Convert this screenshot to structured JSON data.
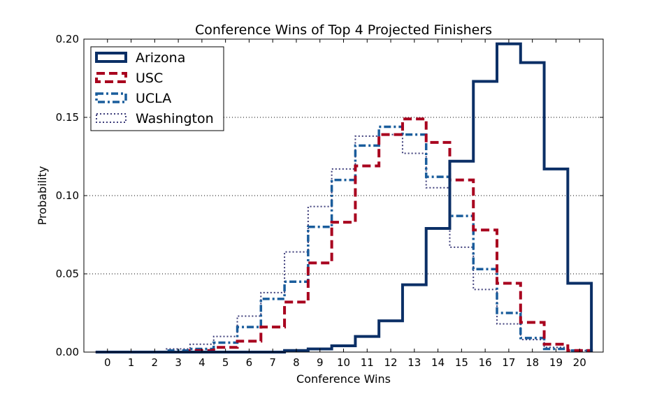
{
  "chart_data": {
    "type": "step-histogram",
    "title": "Conference Wins of Top 4 Projected Finishers",
    "xlabel": "Conference Wins",
    "ylabel": "Probability",
    "xlim": [
      -1,
      21
    ],
    "ylim": [
      0,
      0.2
    ],
    "x_ticks": [
      0,
      1,
      2,
      3,
      4,
      5,
      6,
      7,
      8,
      9,
      10,
      11,
      12,
      13,
      14,
      15,
      16,
      17,
      18,
      19,
      20
    ],
    "y_ticks": [
      0.0,
      0.05,
      0.1,
      0.15,
      0.2
    ],
    "y_tick_labels": [
      "0.00",
      "0.05",
      "0.10",
      "0.15",
      "0.20"
    ],
    "grid": "horizontal dotted",
    "legend_position": "top-left",
    "categories": [
      0,
      1,
      2,
      3,
      4,
      5,
      6,
      7,
      8,
      9,
      10,
      11,
      12,
      13,
      14,
      15,
      16,
      17,
      18,
      19,
      20
    ],
    "series": [
      {
        "name": "Arizona",
        "color": "#0b2f66",
        "style": "solid",
        "values": [
          0,
          0,
          0,
          0,
          0,
          0,
          0,
          0,
          0.001,
          0.002,
          0.004,
          0.01,
          0.02,
          0.043,
          0.079,
          0.122,
          0.173,
          0.197,
          0.185,
          0.117,
          0.044
        ]
      },
      {
        "name": "USC",
        "color": "#a8001e",
        "style": "dashed",
        "values": [
          0,
          0,
          0,
          0,
          0.001,
          0.003,
          0.007,
          0.016,
          0.032,
          0.057,
          0.083,
          0.119,
          0.139,
          0.149,
          0.134,
          0.11,
          0.078,
          0.044,
          0.019,
          0.005,
          0.001
        ]
      },
      {
        "name": "UCLA",
        "color": "#1a5d9c",
        "style": "dashdot",
        "values": [
          0,
          0,
          0,
          0.001,
          0.002,
          0.006,
          0.016,
          0.034,
          0.045,
          0.08,
          0.11,
          0.132,
          0.144,
          0.139,
          0.112,
          0.087,
          0.053,
          0.025,
          0.009,
          0.002,
          0.001
        ]
      },
      {
        "name": "Washington",
        "color": "#3d3d7a",
        "style": "dotted",
        "values": [
          0,
          0,
          0,
          0.002,
          0.005,
          0.01,
          0.023,
          0.038,
          0.064,
          0.093,
          0.117,
          0.138,
          0.139,
          0.127,
          0.105,
          0.067,
          0.04,
          0.018,
          0.008,
          0.003,
          0.001
        ]
      }
    ]
  }
}
